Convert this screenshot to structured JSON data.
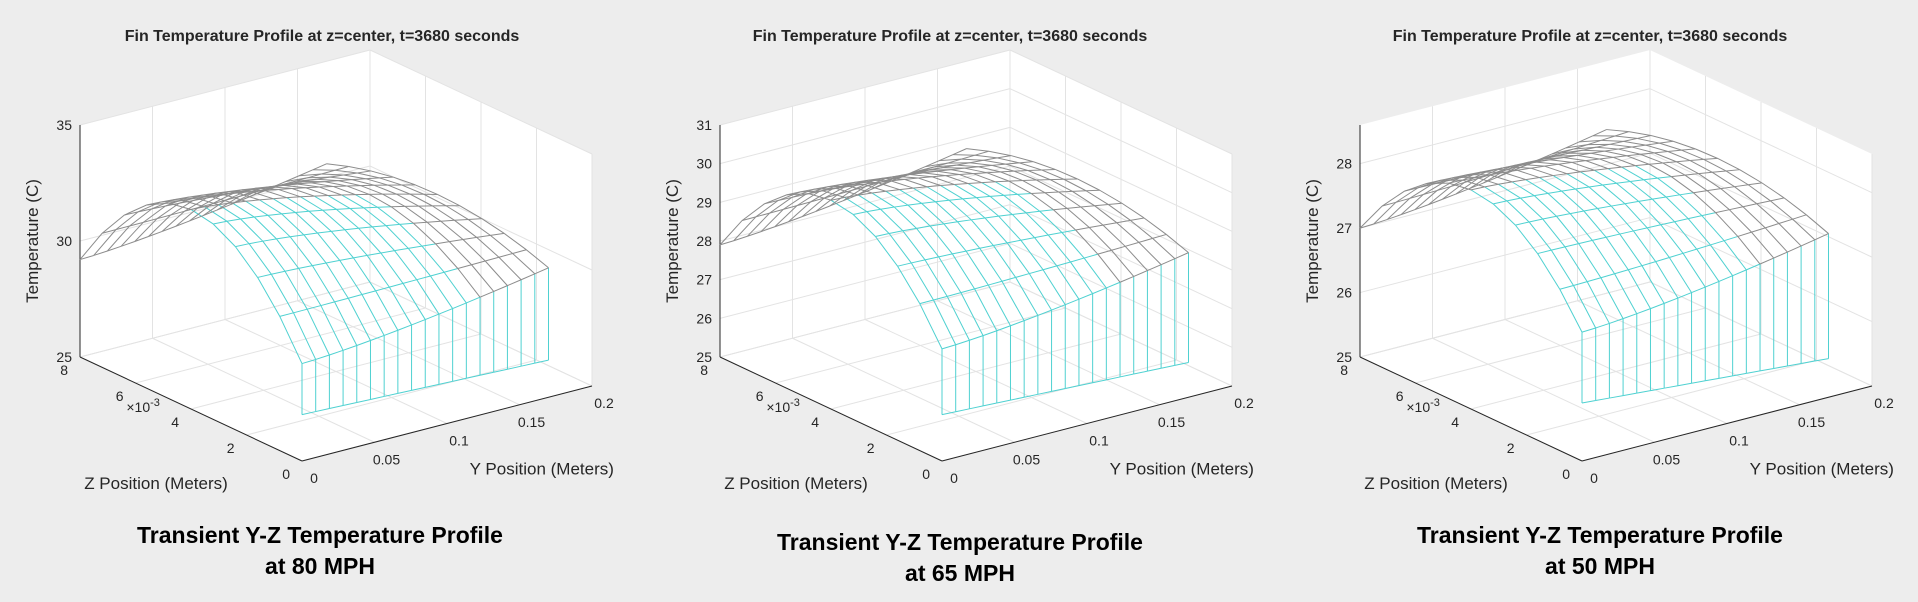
{
  "chart_data": [
    {
      "type": "surface",
      "title": "Fin Temperature Profile at z=center, t=3680 seconds",
      "caption_line1": "Transient Y-Z Temperature Profile",
      "caption_line2": "at 80 MPH",
      "xlabel": "Y Position (Meters)",
      "ylabel": "Z Position (Meters)",
      "zlabel": "Temperature (C)",
      "y_exponent_base": "×10",
      "y_exponent_power": "-3",
      "xlim": [
        0,
        0.2
      ],
      "ylim": [
        0,
        0.008
      ],
      "zlim": [
        25,
        35
      ],
      "xticks": [
        "0",
        "0.05",
        "0.1",
        "0.15",
        "0.2"
      ],
      "yticks": [
        "0",
        "2",
        "4",
        "6",
        "8"
      ],
      "zticks": [
        "25",
        "30",
        "35"
      ],
      "surface": {
        "y_extent": [
          0,
          0.17
        ],
        "z_extent": [
          0,
          0.008
        ],
        "T_base_edge": 29.2,
        "T_center": 33.6,
        "T_tip": 31.5,
        "T_bottom_base": 27.0,
        "T_bottom_tip": 26.6
      },
      "colors": {
        "mesh_top": "#8c8c8c",
        "mesh_side": "#4fd1d1"
      }
    },
    {
      "type": "surface",
      "title": "Fin Temperature Profile at z=center, t=3680 seconds",
      "caption_line1": "Transient Y-Z Temperature Profile",
      "caption_line2": "at 65 MPH",
      "xlabel": "Y Position (Meters)",
      "ylabel": "Z Position (Meters)",
      "zlabel": "Temperature (C)",
      "y_exponent_base": "×10",
      "y_exponent_power": "-3",
      "xlim": [
        0,
        0.2
      ],
      "ylim": [
        0,
        0.008
      ],
      "zlim": [
        25,
        31
      ],
      "xticks": [
        "0",
        "0.05",
        "0.1",
        "0.15",
        "0.2"
      ],
      "yticks": [
        "0",
        "2",
        "4",
        "6",
        "8"
      ],
      "zticks": [
        "25",
        "26",
        "27",
        "28",
        "29",
        "30",
        "31"
      ],
      "surface": {
        "y_extent": [
          0,
          0.17
        ],
        "z_extent": [
          0,
          0.008
        ],
        "T_base_edge": 27.9,
        "T_center": 30.4,
        "T_tip": 29.3,
        "T_bottom_base": 26.2,
        "T_bottom_tip": 25.9
      },
      "colors": {
        "mesh_top": "#8c8c8c",
        "mesh_side": "#4fd1d1"
      }
    },
    {
      "type": "surface",
      "title": "Fin Temperature Profile at z=center, t=3680 seconds",
      "caption_line1": "Transient Y-Z Temperature Profile",
      "caption_line2": "at 50 MPH",
      "xlabel": "Y Position (Meters)",
      "ylabel": "Z Position (Meters)",
      "zlabel": "Temperature (C)",
      "y_exponent_base": "×10",
      "y_exponent_power": "-3",
      "xlim": [
        0,
        0.2
      ],
      "ylim": [
        0,
        0.008
      ],
      "zlim": [
        25,
        28.6
      ],
      "xticks": [
        "0",
        "0.05",
        "0.1",
        "0.15",
        "0.2"
      ],
      "yticks": [
        "0",
        "2",
        "4",
        "6",
        "8"
      ],
      "zticks": [
        "25",
        "26",
        "27",
        "28"
      ],
      "surface": {
        "y_extent": [
          0,
          0.17
        ],
        "z_extent": [
          0,
          0.008
        ],
        "T_base_edge": 27.0,
        "T_center": 28.4,
        "T_tip": 27.9,
        "T_bottom_base": 25.9,
        "T_bottom_tip": 25.6
      },
      "colors": {
        "mesh_top": "#8c8c8c",
        "mesh_side": "#4fd1d1"
      }
    }
  ]
}
